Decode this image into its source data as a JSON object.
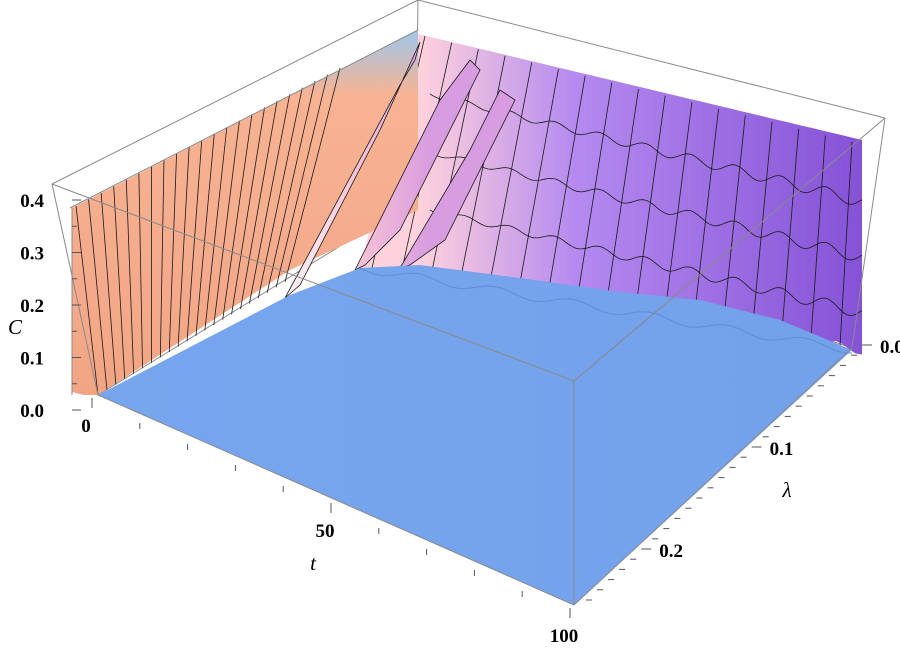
{
  "chart_data": {
    "type": "surface3d",
    "axes": {
      "x": {
        "label": "t",
        "range": [
          0,
          100
        ],
        "ticks": [
          {
            "value": 0,
            "label": "0"
          },
          {
            "value": 50,
            "label": "50"
          },
          {
            "value": 100,
            "label": "100"
          }
        ]
      },
      "y": {
        "label": "λ",
        "range": [
          0,
          0.25
        ],
        "ticks": [
          {
            "value": 0,
            "label": "0.0"
          },
          {
            "value": 0.1,
            "label": "0.1"
          },
          {
            "value": 0.2,
            "label": "0.2"
          }
        ]
      },
      "z": {
        "label": "C",
        "range": [
          0,
          0.4
        ],
        "ticks": [
          {
            "value": 0.0,
            "label": "0.0"
          },
          {
            "value": 0.1,
            "label": "0.1"
          },
          {
            "value": 0.2,
            "label": "0.2"
          },
          {
            "value": 0.3,
            "label": "0.3"
          },
          {
            "value": 0.4,
            "label": "0.4"
          }
        ]
      }
    },
    "surface": {
      "t_values": [
        0,
        5,
        10,
        15,
        20,
        25,
        30,
        35,
        40,
        45,
        50,
        55,
        60,
        65,
        70,
        75,
        80,
        85,
        90,
        95,
        100
      ],
      "lambda_values": [
        0,
        0.025,
        0.05,
        0.075,
        0.1,
        0.125,
        0.15,
        0.175,
        0.2,
        0.225,
        0.25
      ],
      "C_at_lambda_0": [
        0.37,
        0.37,
        0.37,
        0.37,
        0.37,
        0.37,
        0.37,
        0.37,
        0.37,
        0.37,
        0.37,
        0.37,
        0.37,
        0.37,
        0.37,
        0.37,
        0.37,
        0.37,
        0.37,
        0.37,
        0.37
      ],
      "C_elsewhere": 0.0,
      "features": [
        {
          "t": 0,
          "lambda_from": 0,
          "lambda_to": 0.125,
          "C": 0.37
        },
        {
          "t": 22,
          "lambda_from": 0.025,
          "lambda_to": 0.075,
          "C_peak": 0.33
        },
        {
          "t": 28,
          "lambda_from": 0,
          "lambda_to": 0.06,
          "C_peak": 0.34
        },
        {
          "t": 34,
          "lambda_from": 0,
          "lambda_to": 0.05,
          "C_peak": 0.34
        }
      ]
    },
    "box": true,
    "grid": false,
    "colors": {
      "floor": "#77a5ee",
      "wall_light": "#f4b08f",
      "wall_dark": "#8a5ad6",
      "ridge": "#ffc0d8",
      "mesh": "#1a1a1a"
    }
  }
}
